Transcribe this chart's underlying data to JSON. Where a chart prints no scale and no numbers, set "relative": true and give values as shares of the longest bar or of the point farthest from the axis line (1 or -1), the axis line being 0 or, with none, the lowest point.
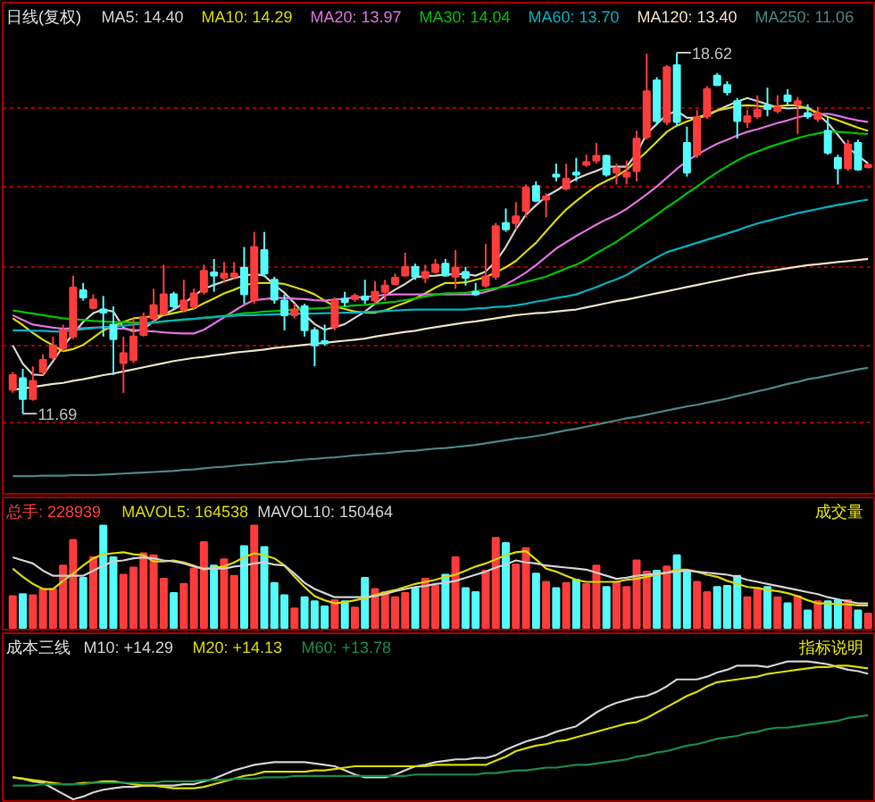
{
  "chart_data": [
    {
      "type": "candlestick",
      "title": "日线(复权)",
      "categories": [
        null,
        null,
        null,
        null,
        null,
        null,
        null,
        null,
        null,
        null,
        null,
        null,
        null,
        null,
        null,
        null,
        null,
        null,
        null,
        null,
        null,
        null,
        null,
        null,
        null,
        null,
        null,
        null,
        null,
        null,
        null,
        null,
        null,
        null,
        null,
        null,
        null,
        null,
        null,
        null,
        null,
        null,
        null,
        null,
        null,
        null,
        null,
        null,
        null,
        null,
        null,
        null,
        null,
        null,
        null,
        null,
        null,
        null,
        null,
        null,
        null,
        null,
        null,
        null,
        null,
        null,
        null,
        null,
        null,
        null,
        null,
        null,
        null,
        null,
        null,
        null,
        null,
        null,
        null,
        null,
        null,
        null,
        null,
        null,
        null,
        null
      ],
      "ylim": [
        10.15,
        19.58
      ],
      "yticks": [
        {
          "value": 11.52,
          "label": null
        },
        {
          "value": 13.0,
          "label": null
        },
        {
          "value": 14.5,
          "label": null
        },
        {
          "value": 16.05,
          "label": null
        },
        {
          "value": 17.56,
          "label": null
        }
      ],
      "grid": "y",
      "tick_labels": false,
      "ohlc": [
        [
          12.15,
          12.49,
          12.09,
          12.43
        ],
        [
          12.37,
          12.55,
          11.69,
          11.97
        ],
        [
          11.97,
          12.6,
          11.94,
          12.32
        ],
        [
          12.49,
          12.83,
          12.43,
          12.72
        ],
        [
          12.77,
          13.17,
          12.72,
          13.0
        ],
        [
          12.95,
          13.4,
          12.89,
          13.29
        ],
        [
          13.17,
          14.34,
          13.12,
          14.11
        ],
        [
          14.06,
          14.2,
          13.86,
          13.92
        ],
        [
          13.72,
          13.98,
          13.69,
          13.88
        ],
        [
          13.69,
          13.95,
          13.17,
          13.63
        ],
        [
          13.4,
          13.75,
          12.43,
          13.12
        ],
        [
          12.66,
          13.17,
          12.09,
          12.85
        ],
        [
          12.72,
          13.52,
          12.66,
          13.17
        ],
        [
          13.2,
          13.63,
          13.17,
          13.54
        ],
        [
          13.52,
          14.09,
          13.46,
          13.77
        ],
        [
          13.61,
          14.55,
          13.58,
          13.98
        ],
        [
          13.98,
          14.03,
          13.69,
          13.75
        ],
        [
          13.69,
          14.26,
          13.63,
          13.86
        ],
        [
          13.75,
          14.09,
          13.69,
          14.0
        ],
        [
          14.03,
          14.55,
          13.98,
          14.43
        ],
        [
          14.4,
          14.66,
          14.03,
          14.34
        ],
        [
          14.3,
          14.6,
          14.2,
          14.38
        ],
        [
          14.32,
          14.6,
          14.26,
          14.38
        ],
        [
          14.49,
          14.89,
          13.8,
          13.98
        ],
        [
          13.86,
          15.18,
          13.8,
          14.89
        ],
        [
          14.83,
          15.18,
          14.32,
          14.38
        ],
        [
          14.26,
          14.32,
          13.8,
          13.88
        ],
        [
          13.86,
          13.98,
          13.29,
          13.58
        ],
        [
          13.58,
          13.8,
          13.52,
          13.69
        ],
        [
          13.75,
          13.8,
          13.17,
          13.29
        ],
        [
          13.29,
          13.35,
          12.6,
          13.0
        ],
        [
          13.08,
          13.4,
          13.0,
          13.04
        ],
        [
          13.35,
          13.92,
          13.29,
          13.86
        ],
        [
          13.89,
          14.03,
          13.75,
          13.83
        ],
        [
          13.89,
          14.0,
          13.84,
          13.95
        ],
        [
          13.94,
          14.26,
          13.8,
          13.88
        ],
        [
          13.86,
          14.23,
          13.8,
          14.03
        ],
        [
          14.03,
          14.26,
          13.86,
          14.15
        ],
        [
          14.18,
          14.38,
          14.15,
          14.3
        ],
        [
          14.34,
          14.78,
          14.32,
          14.51
        ],
        [
          14.51,
          14.57,
          14.26,
          14.32
        ],
        [
          14.3,
          14.55,
          14.2,
          14.41
        ],
        [
          14.41,
          14.66,
          14.38,
          14.55
        ],
        [
          14.57,
          14.66,
          14.32,
          14.34
        ],
        [
          14.32,
          14.83,
          14.09,
          14.49
        ],
        [
          14.41,
          14.51,
          14.15,
          14.3
        ],
        [
          14.03,
          14.2,
          13.95,
          13.98
        ],
        [
          14.15,
          14.95,
          14.11,
          14.32
        ],
        [
          14.32,
          15.35,
          14.26,
          15.29
        ],
        [
          15.35,
          15.63,
          15.18,
          15.23
        ],
        [
          15.35,
          15.75,
          15.23,
          15.48
        ],
        [
          15.58,
          16.09,
          15.46,
          16.03
        ],
        [
          16.06,
          16.15,
          15.75,
          15.78
        ],
        [
          15.8,
          15.92,
          15.46,
          15.86
        ],
        [
          16.28,
          16.49,
          16.15,
          16.24
        ],
        [
          16.01,
          16.49,
          15.98,
          16.2
        ],
        [
          16.32,
          16.6,
          16.15,
          16.28
        ],
        [
          16.47,
          16.66,
          16.43,
          16.52
        ],
        [
          16.55,
          16.89,
          16.49,
          16.64
        ],
        [
          16.64,
          16.66,
          16.24,
          16.28
        ],
        [
          16.32,
          16.49,
          16.09,
          16.4
        ],
        [
          16.24,
          16.55,
          16.09,
          16.32
        ],
        [
          16.35,
          17.12,
          16.15,
          16.97
        ],
        [
          17.0,
          18.6,
          16.95,
          17.88
        ],
        [
          18.09,
          18.15,
          17.23,
          17.31
        ],
        [
          17.29,
          18.38,
          17.23,
          18.34
        ],
        [
          18.38,
          18.62,
          17.23,
          17.29
        ],
        [
          16.89,
          17.2,
          16.24,
          16.32
        ],
        [
          16.66,
          17.52,
          16.6,
          17.38
        ],
        [
          17.4,
          17.98,
          17.35,
          17.92
        ],
        [
          18.18,
          18.23,
          17.98,
          18.0
        ],
        [
          18.0,
          18.07,
          17.8,
          17.86
        ],
        [
          17.69,
          17.75,
          16.97,
          17.31
        ],
        [
          17.29,
          17.52,
          17.18,
          17.4
        ],
        [
          17.4,
          17.8,
          17.35,
          17.52
        ],
        [
          17.61,
          17.95,
          17.4,
          17.54
        ],
        [
          17.5,
          17.8,
          17.46,
          17.58
        ],
        [
          17.8,
          17.92,
          17.61,
          17.69
        ],
        [
          17.63,
          17.77,
          17.06,
          17.69
        ],
        [
          17.46,
          17.63,
          17.35,
          17.4
        ],
        [
          17.35,
          17.58,
          17.29,
          17.46
        ],
        [
          17.12,
          17.4,
          16.66,
          16.7
        ],
        [
          16.6,
          16.66,
          16.09,
          16.4
        ],
        [
          16.4,
          16.95,
          16.35,
          16.86
        ],
        [
          16.89,
          16.95,
          16.35,
          16.38
        ],
        [
          16.42,
          16.49,
          16.4,
          16.47
        ]
      ],
      "colors": [
        "#ff3c3c",
        "#54fcfc",
        "#ff3c3c",
        "#ff3c3c",
        "#ff3c3c",
        "#ff3c3c",
        "#ff3c3c",
        "#54fcfc",
        "#ff3c3c",
        "#54fcfc",
        "#54fcfc",
        "#ff3c3c",
        "#ff3c3c",
        "#ff3c3c",
        "#ff3c3c",
        "#ff3c3c",
        "#54fcfc",
        "#ff3c3c",
        "#ff3c3c",
        "#ff3c3c",
        "#54fcfc",
        "#ff3c3c",
        "#ff3c3c",
        "#54fcfc",
        "#ff3c3c",
        "#54fcfc",
        "#54fcfc",
        "#54fcfc",
        "#ff3c3c",
        "#54fcfc",
        "#54fcfc",
        "#54fcfc",
        "#ff3c3c",
        "#54fcfc",
        "#ff3c3c",
        "#54fcfc",
        "#ff3c3c",
        "#ff3c3c",
        "#ff3c3c",
        "#ff3c3c",
        "#54fcfc",
        "#ff3c3c",
        "#ff3c3c",
        "#54fcfc",
        "#ff3c3c",
        "#54fcfc",
        "#54fcfc",
        "#ff3c3c",
        "#ff3c3c",
        "#54fcfc",
        "#ff3c3c",
        "#ff3c3c",
        "#54fcfc",
        "#ff3c3c",
        "#54fcfc",
        "#ff3c3c",
        "#54fcfc",
        "#ff3c3c",
        "#ff3c3c",
        "#54fcfc",
        "#ff3c3c",
        "#ff3c3c",
        "#ff3c3c",
        "#ff3c3c",
        "#54fcfc",
        "#ff3c3c",
        "#54fcfc",
        "#54fcfc",
        "#ff3c3c",
        "#ff3c3c",
        "#54fcfc",
        "#54fcfc",
        "#54fcfc",
        "#ff3c3c",
        "#ff3c3c",
        "#54fcfc",
        "#ff3c3c",
        "#54fcfc",
        "#ff3c3c",
        "#54fcfc",
        "#ff3c3c",
        "#54fcfc",
        "#54fcfc",
        "#ff3c3c",
        "#54fcfc",
        "#ff3c3c"
      ],
      "series": [
        {
          "name": "MA5: 14.40",
          "type": "line",
          "color": "#d0d0d0",
          "values": [
            13.0,
            12.65,
            12.44,
            12.43,
            12.7,
            12.98,
            13.22,
            13.45,
            13.62,
            13.69,
            13.65,
            13.34,
            13.27,
            13.31,
            13.47,
            13.59,
            13.69,
            13.81,
            13.95,
            14.09,
            14.16,
            14.23,
            14.29,
            14.34,
            14.37,
            14.34,
            14.16,
            14.01,
            13.81,
            13.59,
            13.41,
            13.3,
            13.35,
            13.41,
            13.53,
            13.65,
            13.8,
            13.95,
            14.07,
            14.18,
            14.31,
            14.33,
            14.34,
            14.36,
            14.37,
            14.37,
            14.34,
            14.42,
            14.61,
            14.89,
            15.23,
            15.51,
            15.69,
            15.86,
            15.97,
            16.09,
            16.2,
            16.28,
            16.35,
            16.43,
            16.43,
            16.43,
            16.69,
            17.06,
            17.25,
            17.43,
            17.5,
            17.37,
            17.37,
            17.41,
            17.51,
            17.6,
            17.68,
            17.75,
            17.69,
            17.63,
            17.57,
            17.55,
            17.56,
            17.57,
            17.44,
            17.27,
            17.04,
            16.8,
            16.64,
            16.49
          ]
        },
        {
          "name": "MA10: 14.29",
          "type": "line",
          "color": "#d8d800",
          "values": [
            13.52,
            13.39,
            13.24,
            13.11,
            13.0,
            12.89,
            12.93,
            13.01,
            13.15,
            13.29,
            13.37,
            13.45,
            13.52,
            13.54,
            13.56,
            13.58,
            13.62,
            13.66,
            13.71,
            13.81,
            13.9,
            14.0,
            14.07,
            14.15,
            14.2,
            14.2,
            14.2,
            14.18,
            14.12,
            14.06,
            13.98,
            13.86,
            13.75,
            13.7,
            13.65,
            13.63,
            13.63,
            13.67,
            13.75,
            13.82,
            13.9,
            14.0,
            14.11,
            14.2,
            14.2,
            14.21,
            14.26,
            14.31,
            14.4,
            14.5,
            14.62,
            14.8,
            14.97,
            15.19,
            15.41,
            15.61,
            15.77,
            15.92,
            16.06,
            16.16,
            16.25,
            16.37,
            16.55,
            16.72,
            16.91,
            17.1,
            17.22,
            17.3,
            17.37,
            17.44,
            17.51,
            17.55,
            17.6,
            17.61,
            17.6,
            17.58,
            17.59,
            17.61,
            17.61,
            17.54,
            17.47,
            17.39,
            17.32,
            17.25,
            17.18,
            17.12
          ]
        },
        {
          "name": "MA20: 13.97",
          "type": "line",
          "color": "#e070e0",
          "values": [
            13.58,
            13.49,
            13.4,
            13.37,
            13.34,
            13.32,
            13.33,
            13.33,
            13.34,
            13.35,
            13.33,
            13.32,
            13.3,
            13.28,
            13.27,
            13.25,
            13.24,
            13.23,
            13.23,
            13.3,
            13.42,
            13.54,
            13.66,
            13.78,
            13.87,
            13.89,
            13.91,
            13.91,
            13.9,
            13.89,
            13.87,
            13.86,
            13.88,
            13.9,
            13.92,
            13.93,
            13.95,
            13.97,
            13.98,
            13.98,
            13.98,
            13.98,
            13.98,
            13.98,
            13.98,
            13.98,
            13.98,
            14.03,
            14.08,
            14.17,
            14.28,
            14.4,
            14.54,
            14.7,
            14.86,
            14.98,
            15.1,
            15.21,
            15.32,
            15.42,
            15.51,
            15.62,
            15.76,
            15.9,
            16.05,
            16.22,
            16.39,
            16.54,
            16.66,
            16.77,
            16.87,
            16.95,
            17.03,
            17.1,
            17.15,
            17.21,
            17.27,
            17.32,
            17.38,
            17.42,
            17.44,
            17.45,
            17.41,
            17.36,
            17.32,
            17.29
          ]
        },
        {
          "name": "MA30: 14.04",
          "type": "line",
          "color": "#00c000",
          "values": [
            13.67,
            13.64,
            13.61,
            13.58,
            13.55,
            13.52,
            13.5,
            13.49,
            13.47,
            13.46,
            13.45,
            13.45,
            13.44,
            13.43,
            13.44,
            13.46,
            13.48,
            13.49,
            13.51,
            13.53,
            13.55,
            13.57,
            13.59,
            13.62,
            13.63,
            13.65,
            13.66,
            13.67,
            13.69,
            13.7,
            13.71,
            13.72,
            13.74,
            13.75,
            13.77,
            13.78,
            13.8,
            13.82,
            13.84,
            13.87,
            13.9,
            13.94,
            13.97,
            14.0,
            14.0,
            14.01,
            14.04,
            14.07,
            14.1,
            14.13,
            14.17,
            14.22,
            14.27,
            14.32,
            14.4,
            14.48,
            14.55,
            14.65,
            14.77,
            14.88,
            14.99,
            15.12,
            15.25,
            15.38,
            15.51,
            15.65,
            15.78,
            15.92,
            16.05,
            16.19,
            16.32,
            16.44,
            16.55,
            16.65,
            16.72,
            16.8,
            16.86,
            16.92,
            16.98,
            17.03,
            17.07,
            17.11,
            17.1,
            17.09,
            17.07,
            17.06
          ]
        },
        {
          "name": "MA60: 13.70",
          "type": "line",
          "color": "#00b0c0",
          "values": [
            13.29,
            13.29,
            13.28,
            13.28,
            13.27,
            13.27,
            13.29,
            13.31,
            13.33,
            13.35,
            13.36,
            13.38,
            13.4,
            13.42,
            13.44,
            13.46,
            13.48,
            13.5,
            13.51,
            13.53,
            13.54,
            13.56,
            13.57,
            13.58,
            13.58,
            13.59,
            13.6,
            13.6,
            13.61,
            13.61,
            13.61,
            13.62,
            13.62,
            13.63,
            13.63,
            13.64,
            13.65,
            13.66,
            13.67,
            13.68,
            13.69,
            13.69,
            13.69,
            13.69,
            13.69,
            13.69,
            13.71,
            13.72,
            13.74,
            13.75,
            13.77,
            13.8,
            13.84,
            13.87,
            13.91,
            13.94,
            13.98,
            14.05,
            14.12,
            14.2,
            14.27,
            14.35,
            14.47,
            14.58,
            14.69,
            14.79,
            14.85,
            14.91,
            14.97,
            15.03,
            15.09,
            15.15,
            15.21,
            15.28,
            15.34,
            15.39,
            15.44,
            15.49,
            15.54,
            15.58,
            15.62,
            15.66,
            15.7,
            15.73,
            15.77,
            15.8
          ]
        },
        {
          "name": "MA120: 13.40",
          "type": "line",
          "color": "#e8e0c0",
          "values": [
            12.15,
            12.17,
            12.2,
            12.23,
            12.26,
            12.28,
            12.32,
            12.35,
            12.39,
            12.43,
            12.46,
            12.5,
            12.54,
            12.58,
            12.62,
            12.66,
            12.7,
            12.73,
            12.76,
            12.78,
            12.81,
            12.83,
            12.86,
            12.88,
            12.9,
            12.92,
            12.95,
            12.97,
            12.99,
            13.01,
            13.03,
            13.05,
            13.07,
            13.09,
            13.11,
            13.13,
            13.17,
            13.2,
            13.23,
            13.26,
            13.28,
            13.32,
            13.35,
            13.38,
            13.41,
            13.44,
            13.46,
            13.49,
            13.52,
            13.55,
            13.58,
            13.6,
            13.62,
            13.63,
            13.65,
            13.67,
            13.69,
            13.73,
            13.77,
            13.81,
            13.85,
            13.88,
            13.92,
            13.96,
            14.0,
            14.04,
            14.08,
            14.12,
            14.16,
            14.2,
            14.24,
            14.28,
            14.32,
            14.36,
            14.39,
            14.42,
            14.45,
            14.48,
            14.51,
            14.54,
            14.56,
            14.58,
            14.6,
            14.62,
            14.64,
            14.66
          ]
        },
        {
          "name": "MA250: 11.06",
          "type": "line",
          "color": "#4a8585",
          "values": [
            10.49,
            10.49,
            10.49,
            10.5,
            10.5,
            10.5,
            10.51,
            10.51,
            10.51,
            10.52,
            10.53,
            10.54,
            10.55,
            10.56,
            10.57,
            10.58,
            10.59,
            10.61,
            10.62,
            10.64,
            10.66,
            10.67,
            10.69,
            10.71,
            10.72,
            10.74,
            10.76,
            10.77,
            10.79,
            10.81,
            10.82,
            10.84,
            10.85,
            10.87,
            10.89,
            10.9,
            10.92,
            10.93,
            10.95,
            10.97,
            10.98,
            11.0,
            11.02,
            11.03,
            11.05,
            11.07,
            11.09,
            11.12,
            11.15,
            11.18,
            11.21,
            11.23,
            11.26,
            11.29,
            11.33,
            11.37,
            11.4,
            11.44,
            11.48,
            11.52,
            11.56,
            11.6,
            11.63,
            11.67,
            11.71,
            11.75,
            11.79,
            11.83,
            11.86,
            11.9,
            11.94,
            11.98,
            12.03,
            12.07,
            12.12,
            12.16,
            12.21,
            12.26,
            12.3,
            12.35,
            12.38,
            12.42,
            12.46,
            12.5,
            12.54,
            12.57
          ]
        }
      ],
      "annotations": [
        "18.62",
        "11.69"
      ]
    },
    {
      "type": "bar",
      "relative": true,
      "tick_labels": false,
      "categories": [
        null,
        null,
        null,
        null,
        null,
        null,
        null,
        null,
        null,
        null,
        null,
        null,
        null,
        null,
        null,
        null,
        null,
        null,
        null,
        null,
        null,
        null,
        null,
        null,
        null,
        null,
        null,
        null,
        null,
        null,
        null,
        null,
        null,
        null,
        null,
        null,
        null,
        null,
        null,
        null,
        null,
        null,
        null,
        null,
        null,
        null,
        null,
        null,
        null,
        null,
        null,
        null,
        null,
        null,
        null,
        null,
        null,
        null,
        null,
        null,
        null,
        null,
        null,
        null,
        null,
        null,
        null,
        null,
        null,
        null,
        null,
        null,
        null,
        null,
        null,
        null,
        null,
        null,
        null,
        null,
        null,
        null,
        null,
        null,
        null,
        null
      ],
      "annotations": [
        "成交量"
      ],
      "series": [
        {
          "name": "总手: 228939",
          "type": "bar",
          "color": "#ff3c3c",
          "values": [
            0.31,
            0.33,
            0.32,
            0.38,
            0.38,
            0.61,
            0.86,
            0.49,
            0.69,
            1.0,
            0.69,
            0.52,
            0.59,
            0.73,
            0.71,
            0.48,
            0.34,
            0.43,
            0.58,
            0.84,
            0.61,
            0.67,
            0.51,
            0.8,
            1.0,
            0.79,
            0.44,
            0.32,
            0.19,
            0.3,
            0.26,
            0.21,
            0.27,
            0.26,
            0.2,
            0.49,
            0.38,
            0.35,
            0.3,
            0.34,
            0.39,
            0.48,
            0.41,
            0.52,
            0.69,
            0.39,
            0.35,
            0.56,
            0.88,
            0.83,
            0.62,
            0.78,
            0.53,
            0.45,
            0.39,
            0.44,
            0.47,
            0.43,
            0.61,
            0.4,
            0.45,
            0.4,
            0.66,
            0.55,
            0.56,
            0.6,
            0.71,
            0.56,
            0.45,
            0.35,
            0.4,
            0.41,
            0.51,
            0.3,
            0.39,
            0.4,
            0.3,
            0.24,
            0.31,
            0.17,
            0.26,
            0.26,
            0.27,
            0.27,
            0.17,
            0.14
          ],
          "colors": [
            "#ff3c3c",
            "#54fcfc",
            "#ff3c3c",
            "#ff3c3c",
            "#ff3c3c",
            "#ff3c3c",
            "#ff3c3c",
            "#54fcfc",
            "#ff3c3c",
            "#54fcfc",
            "#54fcfc",
            "#ff3c3c",
            "#ff3c3c",
            "#ff3c3c",
            "#ff3c3c",
            "#ff3c3c",
            "#54fcfc",
            "#ff3c3c",
            "#ff3c3c",
            "#ff3c3c",
            "#54fcfc",
            "#ff3c3c",
            "#ff3c3c",
            "#54fcfc",
            "#ff3c3c",
            "#54fcfc",
            "#54fcfc",
            "#54fcfc",
            "#ff3c3c",
            "#54fcfc",
            "#54fcfc",
            "#54fcfc",
            "#ff3c3c",
            "#54fcfc",
            "#ff3c3c",
            "#54fcfc",
            "#ff3c3c",
            "#ff3c3c",
            "#ff3c3c",
            "#ff3c3c",
            "#54fcfc",
            "#ff3c3c",
            "#ff3c3c",
            "#54fcfc",
            "#ff3c3c",
            "#54fcfc",
            "#54fcfc",
            "#ff3c3c",
            "#ff3c3c",
            "#54fcfc",
            "#ff3c3c",
            "#ff3c3c",
            "#54fcfc",
            "#ff3c3c",
            "#54fcfc",
            "#ff3c3c",
            "#54fcfc",
            "#ff3c3c",
            "#ff3c3c",
            "#54fcfc",
            "#ff3c3c",
            "#ff3c3c",
            "#ff3c3c",
            "#ff3c3c",
            "#54fcfc",
            "#ff3c3c",
            "#54fcfc",
            "#54fcfc",
            "#ff3c3c",
            "#ff3c3c",
            "#54fcfc",
            "#54fcfc",
            "#54fcfc",
            "#ff3c3c",
            "#ff3c3c",
            "#54fcfc",
            "#ff3c3c",
            "#54fcfc",
            "#ff3c3c",
            "#54fcfc",
            "#ff3c3c",
            "#54fcfc",
            "#54fcfc",
            "#ff3c3c",
            "#54fcfc",
            "#ff3c3c"
          ]
        },
        {
          "name": "MAVOL5: 164538",
          "type": "line",
          "color": "#d8d800",
          "values": [
            0.58,
            0.5,
            0.43,
            0.38,
            0.38,
            0.46,
            0.53,
            0.61,
            0.68,
            0.72,
            0.73,
            0.74,
            0.72,
            0.71,
            0.65,
            0.65,
            0.66,
            0.64,
            0.61,
            0.57,
            0.59,
            0.6,
            0.64,
            0.69,
            0.73,
            0.71,
            0.68,
            0.61,
            0.5,
            0.4,
            0.31,
            0.27,
            0.24,
            0.25,
            0.27,
            0.29,
            0.32,
            0.35,
            0.37,
            0.4,
            0.43,
            0.45,
            0.47,
            0.5,
            0.52,
            0.56,
            0.6,
            0.63,
            0.67,
            0.71,
            0.74,
            0.75,
            0.67,
            0.58,
            0.55,
            0.51,
            0.47,
            0.45,
            0.45,
            0.45,
            0.45,
            0.47,
            0.48,
            0.5,
            0.52,
            0.54,
            0.57,
            0.57,
            0.55,
            0.52,
            0.5,
            0.46,
            0.43,
            0.4,
            0.39,
            0.37,
            0.36,
            0.34,
            0.31,
            0.27,
            0.24,
            0.24,
            0.23,
            0.23,
            0.22,
            0.22
          ]
        },
        {
          "name": "MAVOL10: 150464",
          "type": "line",
          "color": "#d0d0d0",
          "values": [
            0.69,
            0.66,
            0.63,
            0.56,
            0.51,
            0.51,
            0.51,
            0.51,
            0.56,
            0.61,
            0.65,
            0.66,
            0.68,
            0.69,
            0.68,
            0.66,
            0.65,
            0.63,
            0.6,
            0.58,
            0.58,
            0.58,
            0.6,
            0.61,
            0.63,
            0.64,
            0.62,
            0.61,
            0.53,
            0.44,
            0.38,
            0.34,
            0.3,
            0.3,
            0.3,
            0.3,
            0.31,
            0.33,
            0.36,
            0.38,
            0.4,
            0.41,
            0.43,
            0.44,
            0.46,
            0.49,
            0.52,
            0.55,
            0.59,
            0.62,
            0.66,
            0.64,
            0.63,
            0.61,
            0.6,
            0.59,
            0.58,
            0.57,
            0.54,
            0.51,
            0.48,
            0.49,
            0.51,
            0.52,
            0.53,
            0.54,
            0.55,
            0.56,
            0.55,
            0.54,
            0.53,
            0.52,
            0.5,
            0.47,
            0.45,
            0.43,
            0.41,
            0.39,
            0.37,
            0.35,
            0.33,
            0.3,
            0.28,
            0.26,
            0.24,
            0.24
          ]
        }
      ]
    },
    {
      "type": "line",
      "title": "成本三线",
      "relative": true,
      "tick_labels": false,
      "categories": [
        null,
        null,
        null,
        null,
        null,
        null,
        null,
        null,
        null,
        null,
        null,
        null,
        null,
        null,
        null,
        null,
        null,
        null,
        null,
        null,
        null,
        null,
        null,
        null,
        null,
        null,
        null,
        null,
        null,
        null,
        null,
        null,
        null,
        null,
        null,
        null,
        null,
        null,
        null,
        null,
        null,
        null,
        null,
        null,
        null,
        null,
        null,
        null,
        null,
        null,
        null,
        null,
        null,
        null,
        null,
        null,
        null,
        null,
        null,
        null,
        null,
        null,
        null,
        null,
        null,
        null,
        null,
        null,
        null,
        null,
        null,
        null,
        null,
        null,
        null,
        null,
        null,
        null,
        null,
        null,
        null,
        null,
        null,
        null,
        null,
        null
      ],
      "annotations": [
        "指标说明"
      ],
      "series": [
        {
          "name": "M10: +14.29",
          "type": "line",
          "color": "#d0d0d0",
          "values": [
            0.16,
            0.15,
            0.13,
            0.12,
            0.08,
            0.04,
            0.0,
            0.02,
            0.05,
            0.07,
            0.08,
            0.09,
            0.09,
            0.1,
            0.1,
            0.1,
            0.1,
            0.11,
            0.11,
            0.13,
            0.15,
            0.18,
            0.21,
            0.23,
            0.25,
            0.26,
            0.27,
            0.27,
            0.27,
            0.27,
            0.26,
            0.25,
            0.24,
            0.21,
            0.18,
            0.16,
            0.16,
            0.16,
            0.18,
            0.21,
            0.24,
            0.25,
            0.27,
            0.28,
            0.29,
            0.29,
            0.3,
            0.3,
            0.32,
            0.36,
            0.39,
            0.42,
            0.44,
            0.46,
            0.49,
            0.51,
            0.53,
            0.58,
            0.63,
            0.67,
            0.7,
            0.72,
            0.74,
            0.75,
            0.78,
            0.82,
            0.87,
            0.87,
            0.87,
            0.89,
            0.92,
            0.94,
            0.97,
            0.97,
            0.97,
            0.96,
            0.98,
            1.0,
            1.0,
            1.0,
            0.99,
            0.98,
            0.96,
            0.94,
            0.93,
            0.91
          ]
        },
        {
          "name": "M20: +14.13",
          "type": "line",
          "color": "#d8d800",
          "values": [
            0.16,
            0.15,
            0.14,
            0.13,
            0.12,
            0.11,
            0.11,
            0.12,
            0.12,
            0.13,
            0.13,
            0.12,
            0.11,
            0.1,
            0.1,
            0.09,
            0.08,
            0.08,
            0.08,
            0.09,
            0.11,
            0.13,
            0.15,
            0.17,
            0.18,
            0.2,
            0.2,
            0.2,
            0.2,
            0.2,
            0.21,
            0.21,
            0.22,
            0.23,
            0.24,
            0.24,
            0.24,
            0.24,
            0.24,
            0.24,
            0.24,
            0.24,
            0.25,
            0.25,
            0.25,
            0.25,
            0.25,
            0.25,
            0.28,
            0.31,
            0.35,
            0.37,
            0.39,
            0.4,
            0.42,
            0.43,
            0.45,
            0.47,
            0.49,
            0.51,
            0.53,
            0.55,
            0.56,
            0.59,
            0.63,
            0.67,
            0.71,
            0.75,
            0.78,
            0.82,
            0.85,
            0.86,
            0.87,
            0.88,
            0.89,
            0.91,
            0.92,
            0.93,
            0.94,
            0.95,
            0.96,
            0.96,
            0.97,
            0.97,
            0.96,
            0.95
          ]
        },
        {
          "name": "M60: +13.78",
          "type": "line",
          "color": "#1a8a4a",
          "values": [
            0.1,
            0.1,
            0.1,
            0.11,
            0.11,
            0.11,
            0.11,
            0.11,
            0.12,
            0.12,
            0.12,
            0.12,
            0.12,
            0.12,
            0.12,
            0.13,
            0.13,
            0.13,
            0.13,
            0.14,
            0.14,
            0.14,
            0.15,
            0.15,
            0.15,
            0.16,
            0.16,
            0.16,
            0.17,
            0.17,
            0.17,
            0.17,
            0.17,
            0.17,
            0.17,
            0.17,
            0.17,
            0.17,
            0.17,
            0.17,
            0.18,
            0.18,
            0.18,
            0.18,
            0.18,
            0.18,
            0.18,
            0.19,
            0.19,
            0.2,
            0.21,
            0.21,
            0.22,
            0.23,
            0.23,
            0.24,
            0.25,
            0.25,
            0.26,
            0.27,
            0.28,
            0.29,
            0.31,
            0.32,
            0.34,
            0.35,
            0.37,
            0.39,
            0.4,
            0.42,
            0.44,
            0.45,
            0.46,
            0.48,
            0.49,
            0.51,
            0.52,
            0.52,
            0.53,
            0.54,
            0.55,
            0.56,
            0.57,
            0.59,
            0.6,
            0.61
          ]
        }
      ]
    }
  ]
}
